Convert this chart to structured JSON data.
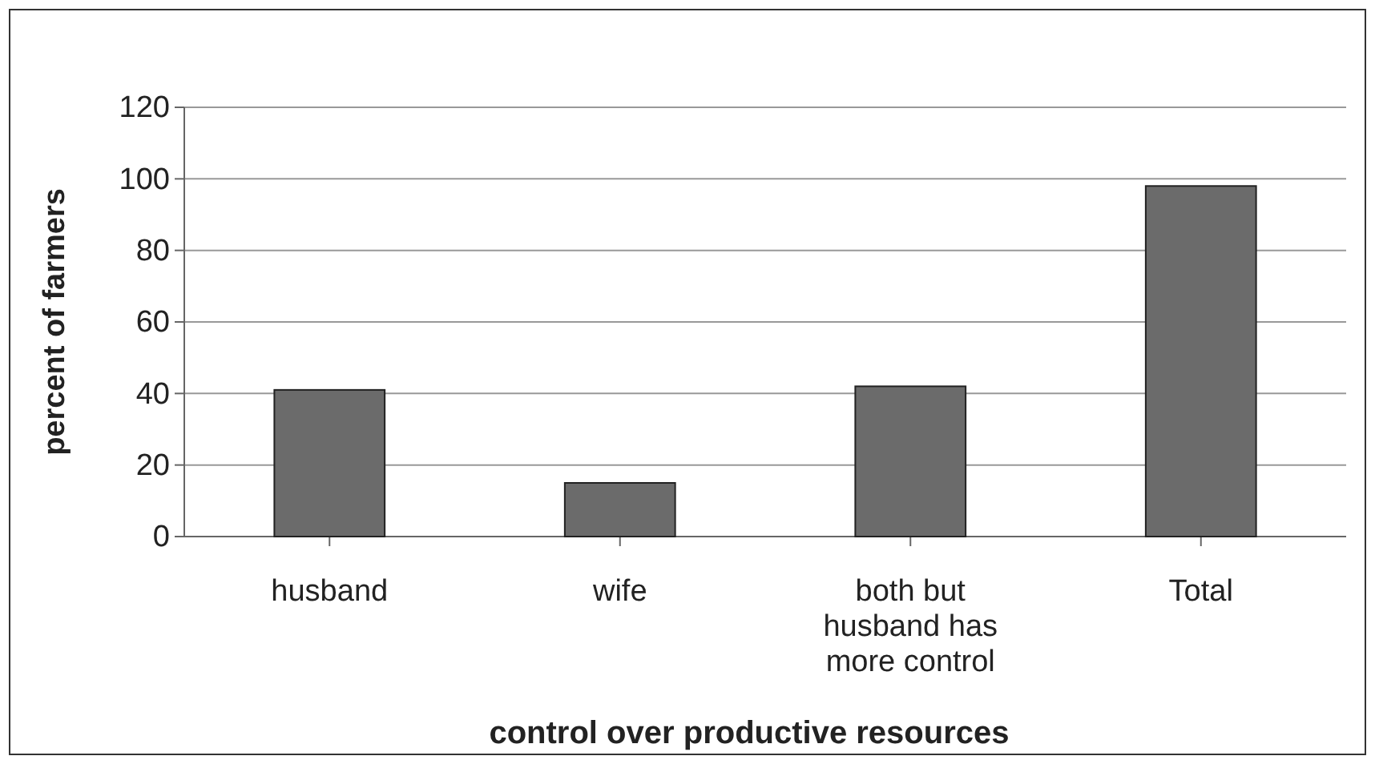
{
  "chart_data": {
    "type": "bar",
    "xlabel": "control over productive resources",
    "ylabel": "percent of farmers",
    "categories": [
      "husband",
      "wife",
      "both but husband has more control",
      "Total"
    ],
    "values": [
      41,
      15,
      42,
      98
    ],
    "color": "#6b6b6b",
    "ylim": [
      0,
      120
    ],
    "yticks": [
      0,
      20,
      40,
      60,
      80,
      100,
      120
    ],
    "grid": "y"
  }
}
